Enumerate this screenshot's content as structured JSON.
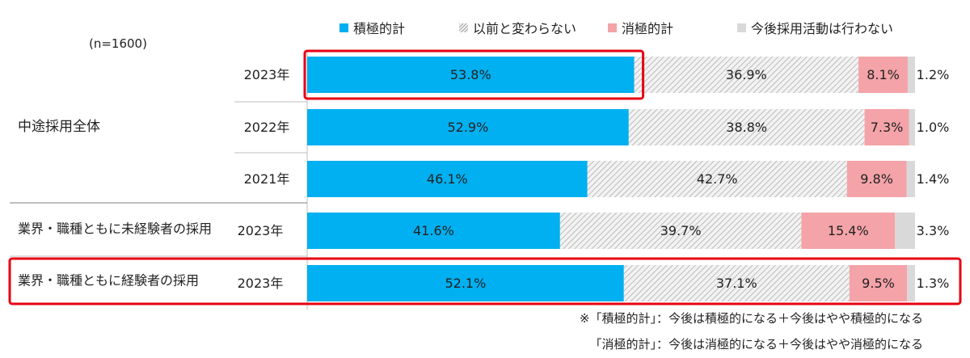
{
  "chart_data": {
    "type": "bar",
    "orientation": "horizontal",
    "stacked": true,
    "normalized_percent": true,
    "sample_note": "(n=1600)",
    "groups": [
      {
        "label": "中途採用全体",
        "rows": [
          "2023年",
          "2022年",
          "2021年"
        ]
      },
      {
        "label": "業界・職種ともに未経験者の採用",
        "rows": [
          "2023年"
        ]
      },
      {
        "label": "業界・職種ともに経験者の採用",
        "rows": [
          "2023年"
        ]
      }
    ],
    "categories": [
      "2023年",
      "2022年",
      "2021年",
      "2023年",
      "2023年"
    ],
    "series": [
      {
        "name": "積極的計",
        "color": "#00b0f0",
        "pattern": "solid",
        "values": [
          53.8,
          52.9,
          46.1,
          41.6,
          52.1
        ],
        "labels": [
          "53.8%",
          "52.9%",
          "46.1%",
          "41.6%",
          "52.1%"
        ]
      },
      {
        "name": "以前と変わらない",
        "color": "#c8c8c8",
        "pattern": "diagonal-hatch",
        "values": [
          36.9,
          38.8,
          42.7,
          39.7,
          37.1
        ],
        "labels": [
          "36.9%",
          "38.8%",
          "42.7%",
          "39.7%",
          "37.1%"
        ]
      },
      {
        "name": "消極的計",
        "color": "#f4a3a8",
        "pattern": "solid",
        "values": [
          8.1,
          7.3,
          9.8,
          15.4,
          9.5
        ],
        "labels": [
          "8.1%",
          "7.3%",
          "9.8%",
          "15.4%",
          "9.5%"
        ]
      },
      {
        "name": "今後採用活動は行わない",
        "color": "#d9d9d9",
        "pattern": "solid",
        "values": [
          1.2,
          1.0,
          1.4,
          3.3,
          1.3
        ],
        "labels": [
          "1.2%",
          "1.0%",
          "1.4%",
          "3.3%",
          "1.3%"
        ]
      }
    ],
    "highlights": [
      "row-2023-overall-positive",
      "group-experienced-hire"
    ],
    "highlight_color": "#e60012",
    "legend_position": "top",
    "grid": false,
    "xlim": [
      0,
      100
    ]
  },
  "footnotes": [
    "※「積極的計」：今後は積極的になる＋今後はやや積極的になる",
    "「消極的計」：今後は消極的になる＋今後はやや消極的になる"
  ]
}
